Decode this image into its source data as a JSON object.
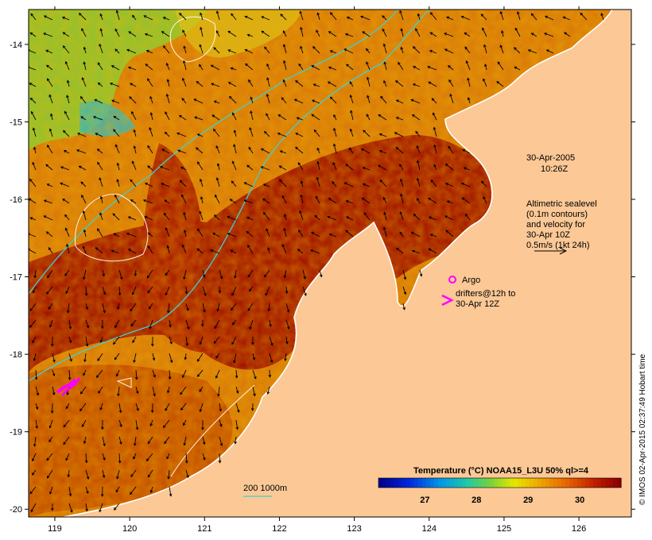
{
  "map": {
    "lon_ticks": [
      "119",
      "120",
      "121",
      "122",
      "123",
      "124",
      "125",
      "126"
    ],
    "lat_ticks": [
      "-14",
      "-15",
      "-16",
      "-17",
      "-18",
      "-19",
      "-20"
    ],
    "lon_range": [
      118.65,
      126.7
    ],
    "lat_range": [
      -13.55,
      -20.1
    ]
  },
  "annotations": {
    "date_line1": "30-Apr-2005",
    "date_line2": "10:26Z",
    "altimetry": [
      "Altimetric sealevel",
      "(0.1m contours)",
      "and velocity for",
      "30-Apr 10Z",
      "0.5m/s (1kt 24h)"
    ],
    "argo_label": "Argo",
    "drifters": [
      "drifters@12h to",
      "30-Apr 12Z"
    ],
    "isobath_label": "200  1000m"
  },
  "legend": {
    "title": "Temperature (°C) NOAA15_L3U 50% ql>=4",
    "ticks": [
      "27",
      "28",
      "29",
      "30"
    ],
    "tick_values": [
      27,
      28,
      29,
      30
    ],
    "range": [
      26.1,
      30.8
    ]
  },
  "credit": "© IMOS 02-Apr-2015 02:37:49 Hobart time",
  "colors": {
    "land": "#fbc896",
    "ocean_warm": "#9d0c00",
    "ocean_mid": "#c43f00",
    "ocean_cool": "#e08000",
    "cool_patch_green": "#6fcf3a",
    "cool_patch_cyan": "#19b7d4",
    "isobath_200": "#3fd0d0",
    "isobath_1000": "#3fd0d0",
    "sealevel_contour": "#ffffff",
    "drifter": "#ff00ff"
  }
}
